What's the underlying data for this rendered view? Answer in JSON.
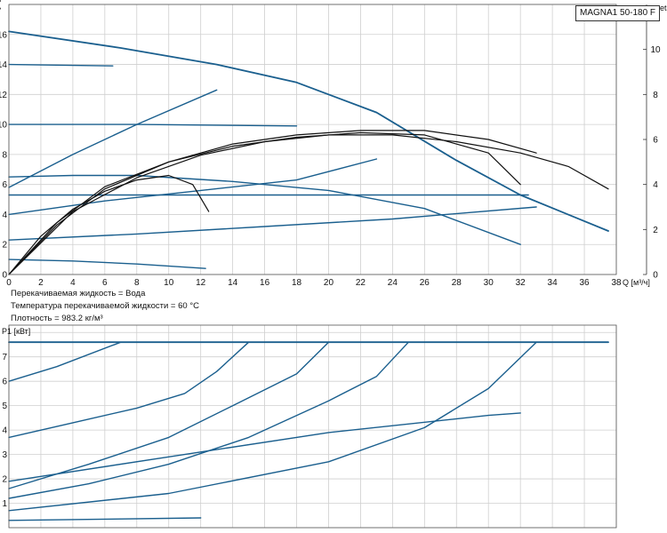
{
  "model_label": "MAGNA1 50-180 F",
  "info": {
    "liquid": "Перекачиваемая жидкость = Вода",
    "temperature": "Температура перекачиваемой жидкости = 60 °C",
    "density": "Плотность = 983.2 кг/м³"
  },
  "chart_data": [
    {
      "type": "line",
      "title": "",
      "xlabel": "Q [м³/ч]",
      "ylabel": "H [м]",
      "y2label": "eta [%]",
      "xlim": [
        0,
        38
      ],
      "ylim": [
        0,
        18
      ],
      "x_ticks": [
        "0",
        "2",
        "4",
        "6",
        "8",
        "10",
        "12",
        "14",
        "16",
        "18",
        "20",
        "22",
        "24",
        "26",
        "28",
        "30",
        "32",
        "34",
        "36",
        "38"
      ],
      "y_ticks": [
        "0",
        "2",
        "4",
        "6",
        "8",
        "10",
        "12",
        "14",
        "16"
      ],
      "y2lim": [
        0,
        12
      ],
      "y2_ticks": [
        "0",
        "2",
        "4",
        "6",
        "8",
        "10"
      ],
      "grid": true,
      "colors": {
        "curves": "#1a5f8e",
        "efficiency": "#111111",
        "grid": "#cfcfcf"
      },
      "series": [
        {
          "role": "max-curve",
          "points": [
            [
              0,
              16.2
            ],
            [
              7,
              15.1
            ],
            [
              13,
              14.0
            ],
            [
              18,
              12.8
            ],
            [
              23,
              10.8
            ],
            [
              28,
              7.6
            ],
            [
              32,
              5.3
            ],
            [
              37.5,
              2.9
            ]
          ]
        },
        {
          "role": "proportional-pressure",
          "points": [
            [
              0,
              14
            ],
            [
              6.5,
              13.9
            ]
          ]
        },
        {
          "role": "proportional-pressure",
          "points": [
            [
              0,
              5.8
            ],
            [
              4,
              8.0
            ],
            [
              8,
              10.0
            ],
            [
              13,
              12.3
            ]
          ]
        },
        {
          "role": "proportional-pressure",
          "points": [
            [
              0,
              10
            ],
            [
              8,
              10
            ],
            [
              18,
              9.9
            ]
          ]
        },
        {
          "role": "proportional-pressure",
          "points": [
            [
              0,
              4.0
            ],
            [
              6,
              4.9
            ],
            [
              12,
              5.6
            ],
            [
              18,
              6.3
            ],
            [
              23,
              7.7
            ]
          ]
        },
        {
          "role": "proportional-pressure",
          "points": [
            [
              0,
              6.5
            ],
            [
              4,
              6.6
            ],
            [
              8,
              6.6
            ],
            [
              14,
              6.2
            ],
            [
              20,
              5.6
            ],
            [
              26,
              4.4
            ],
            [
              32,
              2.0
            ]
          ]
        },
        {
          "role": "constant-pressure",
          "points": [
            [
              0,
              5.3
            ],
            [
              10,
              5.3
            ],
            [
              20,
              5.3
            ],
            [
              30,
              5.3
            ],
            [
              32.5,
              5.3
            ]
          ]
        },
        {
          "role": "constant-pressure",
          "points": [
            [
              0,
              2.3
            ],
            [
              8,
              2.7
            ],
            [
              16,
              3.2
            ],
            [
              24,
              3.7
            ],
            [
              33,
              4.5
            ]
          ]
        },
        {
          "role": "constant-pressure",
          "points": [
            [
              0,
              1.0
            ],
            [
              4,
              0.9
            ],
            [
              8,
              0.7
            ],
            [
              12.3,
              0.4
            ]
          ]
        },
        {
          "role": "efficiency",
          "points": [
            [
              0,
              0
            ],
            [
              2,
              1.7
            ],
            [
              4,
              2.9
            ],
            [
              6,
              3.7
            ],
            [
              8,
              4.2
            ],
            [
              10,
              4.4
            ],
            [
              11.5,
              4.0
            ],
            [
              12.5,
              2.8
            ]
          ]
        },
        {
          "role": "efficiency",
          "points": [
            [
              0,
              0
            ],
            [
              3,
              2.3
            ],
            [
              6,
              3.9
            ],
            [
              10,
              5.0
            ],
            [
              14,
              5.7
            ],
            [
              18,
              6.1
            ],
            [
              22,
              6.3
            ],
            [
              26,
              6.2
            ],
            [
              30,
              5.4
            ],
            [
              32,
              4.0
            ]
          ]
        },
        {
          "role": "efficiency",
          "points": [
            [
              0,
              0
            ],
            [
              3,
              2.2
            ],
            [
              6,
              3.8
            ],
            [
              10,
              5.0
            ],
            [
              14,
              5.8
            ],
            [
              18,
              6.2
            ],
            [
              22,
              6.4
            ],
            [
              26,
              6.4
            ],
            [
              30,
              6.0
            ],
            [
              33,
              5.4
            ]
          ]
        },
        {
          "role": "efficiency",
          "points": [
            [
              0,
              0
            ],
            [
              4,
              2.8
            ],
            [
              8,
              4.3
            ],
            [
              12,
              5.3
            ],
            [
              16,
              5.9
            ],
            [
              20,
              6.2
            ],
            [
              24,
              6.2
            ],
            [
              28,
              5.9
            ],
            [
              32,
              5.4
            ],
            [
              35,
              4.8
            ],
            [
              37.5,
              3.8
            ]
          ]
        }
      ]
    },
    {
      "type": "line",
      "title": "",
      "xlabel": "",
      "ylabel": "P1 [кВт]",
      "xlim": [
        0,
        38
      ],
      "ylim": [
        0,
        8.3
      ],
      "y_ticks": [
        "1",
        "2",
        "3",
        "4",
        "5",
        "6",
        "7"
      ],
      "grid": true,
      "colors": {
        "curves": "#1a5f8e",
        "grid": "#cfcfcf"
      },
      "series": [
        {
          "role": "max-power",
          "points": [
            [
              0,
              7.6
            ],
            [
              10,
              7.6
            ],
            [
              20,
              7.6
            ],
            [
              30,
              7.6
            ],
            [
              37.5,
              7.6
            ]
          ]
        },
        {
          "points": [
            [
              0,
              6.0
            ],
            [
              3,
              6.6
            ],
            [
              7,
              7.6
            ]
          ]
        },
        {
          "points": [
            [
              0,
              3.7
            ],
            [
              4,
              4.3
            ],
            [
              8,
              4.9
            ],
            [
              11,
              5.5
            ],
            [
              13,
              6.4
            ],
            [
              15,
              7.6
            ]
          ]
        },
        {
          "points": [
            [
              0,
              1.6
            ],
            [
              5,
              2.6
            ],
            [
              10,
              3.7
            ],
            [
              14,
              5.0
            ],
            [
              18,
              6.3
            ],
            [
              20,
              7.6
            ]
          ]
        },
        {
          "points": [
            [
              0,
              1.2
            ],
            [
              5,
              1.8
            ],
            [
              10,
              2.6
            ],
            [
              15,
              3.7
            ],
            [
              20,
              5.2
            ],
            [
              23,
              6.2
            ],
            [
              25,
              7.6
            ]
          ]
        },
        {
          "points": [
            [
              0,
              1.9
            ],
            [
              10,
              2.9
            ],
            [
              20,
              3.9
            ],
            [
              30,
              4.6
            ],
            [
              32,
              4.7
            ]
          ]
        },
        {
          "points": [
            [
              0,
              0.7
            ],
            [
              10,
              1.4
            ],
            [
              20,
              2.7
            ],
            [
              26,
              4.1
            ],
            [
              30,
              5.7
            ],
            [
              33,
              7.6
            ]
          ]
        },
        {
          "points": [
            [
              0,
              0.3
            ],
            [
              6,
              0.35
            ],
            [
              12,
              0.4
            ]
          ]
        }
      ]
    }
  ]
}
